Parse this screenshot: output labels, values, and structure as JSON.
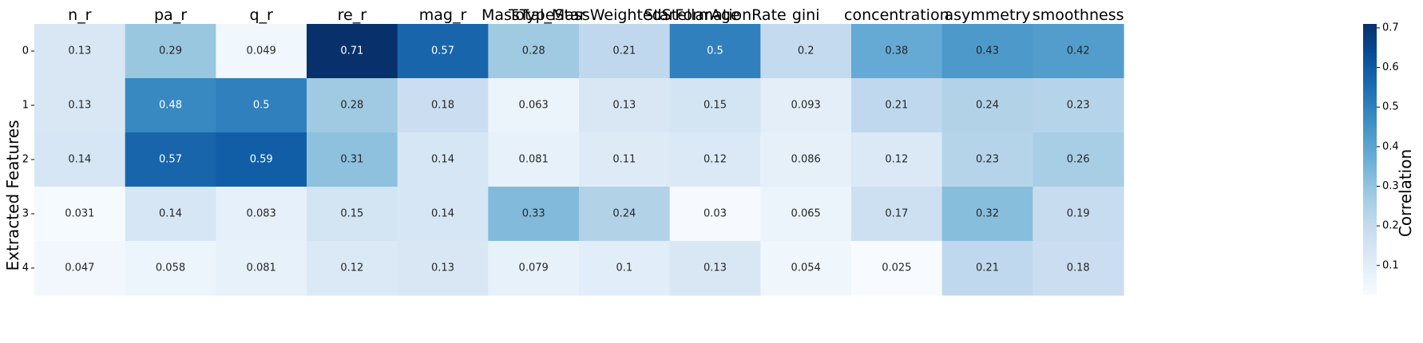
{
  "chart_data": {
    "type": "heatmap",
    "columns": [
      "n_r",
      "pa_r",
      "q_r",
      "re_r",
      "mag_r",
      "MassTypeStar",
      "Total_MassWeightedStellarAge",
      "StarFormationRate",
      "gini",
      "concentration",
      "asymmetry",
      "smoothness"
    ],
    "rows": [
      "0",
      "1",
      "2",
      "3",
      "4"
    ],
    "values": [
      [
        0.13,
        0.29,
        0.049,
        0.71,
        0.57,
        0.28,
        0.21,
        0.5,
        0.2,
        0.38,
        0.43,
        0.42
      ],
      [
        0.13,
        0.48,
        0.5,
        0.28,
        0.18,
        0.063,
        0.13,
        0.15,
        0.093,
        0.21,
        0.24,
        0.23
      ],
      [
        0.14,
        0.57,
        0.59,
        0.31,
        0.14,
        0.081,
        0.11,
        0.12,
        0.086,
        0.12,
        0.23,
        0.26
      ],
      [
        0.031,
        0.14,
        0.083,
        0.15,
        0.14,
        0.33,
        0.24,
        0.03,
        0.065,
        0.17,
        0.32,
        0.19
      ],
      [
        0.047,
        0.058,
        0.081,
        0.12,
        0.13,
        0.079,
        0.1,
        0.13,
        0.054,
        0.025,
        0.21,
        0.18
      ]
    ],
    "value_labels": [
      [
        "0.13",
        "0.29",
        "0.049",
        "0.71",
        "0.57",
        "0.28",
        "0.21",
        "0.5",
        "0.2",
        "0.38",
        "0.43",
        "0.42"
      ],
      [
        "0.13",
        "0.48",
        "0.5",
        "0.28",
        "0.18",
        "0.063",
        "0.13",
        "0.15",
        "0.093",
        "0.21",
        "0.24",
        "0.23"
      ],
      [
        "0.14",
        "0.57",
        "0.59",
        "0.31",
        "0.14",
        "0.081",
        "0.11",
        "0.12",
        "0.086",
        "0.12",
        "0.23",
        "0.26"
      ],
      [
        "0.031",
        "0.14",
        "0.083",
        "0.15",
        "0.14",
        "0.33",
        "0.24",
        "0.03",
        "0.065",
        "0.17",
        "0.32",
        "0.19"
      ],
      [
        "0.047",
        "0.058",
        "0.081",
        "0.12",
        "0.13",
        "0.079",
        "0.1",
        "0.13",
        "0.054",
        "0.025",
        "0.21",
        "0.18"
      ]
    ],
    "ylabel": "Extracted Features",
    "colorbar": {
      "label": "Correlation",
      "range": [
        0.025,
        0.71
      ],
      "ticks": [
        "0.1",
        "0.2",
        "0.3",
        "0.4",
        "0.5",
        "0.6",
        "0.7"
      ],
      "tick_values": [
        0.1,
        0.2,
        0.3,
        0.4,
        0.5,
        0.6,
        0.7
      ],
      "colormap": "Blues"
    }
  }
}
